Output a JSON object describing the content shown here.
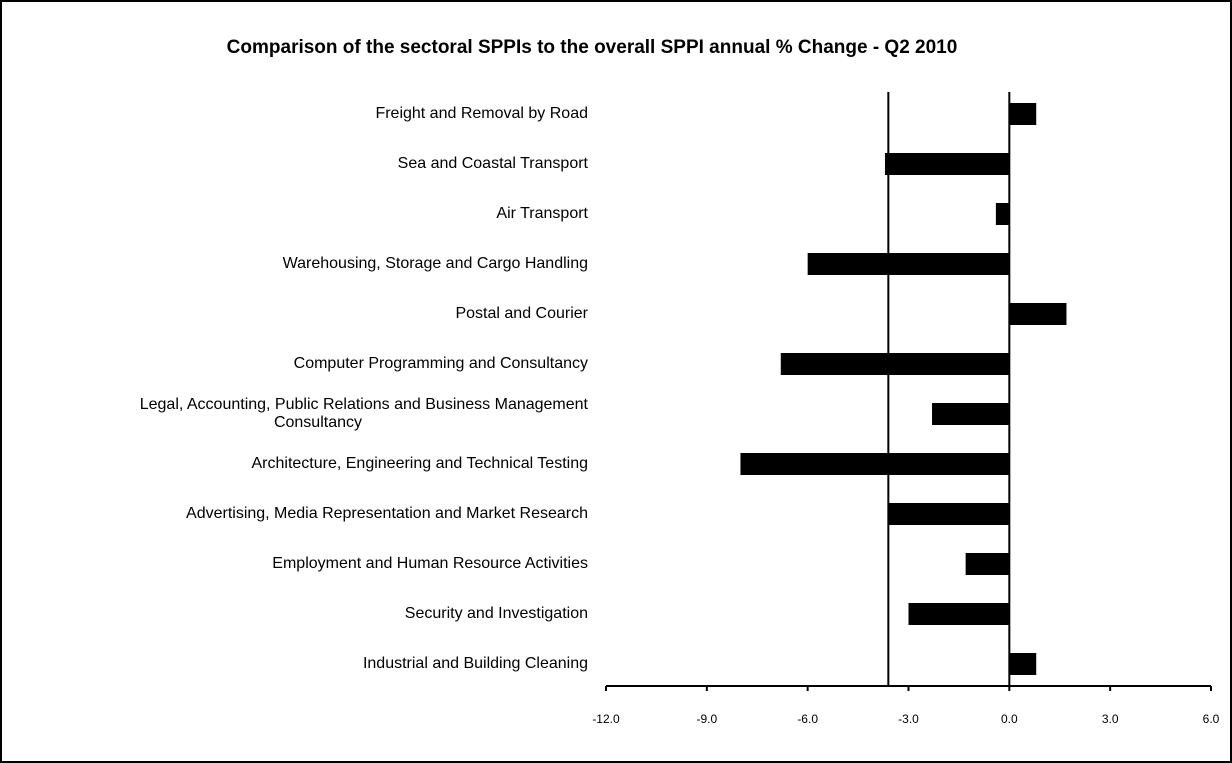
{
  "chart_data": {
    "type": "bar",
    "orientation": "horizontal",
    "title": "Comparison of the sectoral SPPIs to the overall SPPI annual % Change - Q2 2010",
    "categories": [
      "Freight and Removal by Road",
      "Sea and Coastal Transport",
      "Air Transport",
      "Warehousing, Storage and Cargo Handling",
      "Postal and Courier",
      "Computer Programming and Consultancy",
      "Legal, Accounting, Public Relations and Business Management\nConsultancy",
      "Architecture, Engineering and Technical Testing",
      "Advertising, Media Representation and Market Research",
      "Employment and Human Resource Activities",
      "Security and Investigation",
      "Industrial and Building Cleaning"
    ],
    "values": [
      0.8,
      -3.7,
      -0.4,
      -6.0,
      1.7,
      -6.8,
      -2.3,
      -8.0,
      -3.6,
      -1.3,
      -3.0,
      0.8
    ],
    "color": "#000000",
    "reference_value": -3.6,
    "xlim": [
      -12,
      6
    ],
    "xticks": [
      {
        "value": -12,
        "label": "-12.0"
      },
      {
        "value": -9,
        "label": "-9.0"
      },
      {
        "value": -6,
        "label": "-6.0"
      },
      {
        "value": -3,
        "label": "-3.0"
      },
      {
        "value": 0,
        "label": "0.0"
      },
      {
        "value": 3,
        "label": "3.0"
      },
      {
        "value": 6,
        "label": "6.0"
      }
    ],
    "grid": false
  }
}
